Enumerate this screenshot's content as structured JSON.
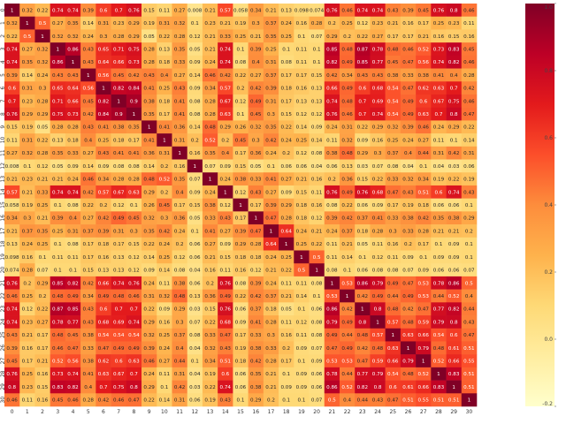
{
  "chart_data": {
    "type": "heatmap",
    "title": "",
    "xlabel": "",
    "ylabel": "",
    "x_tick_labels": [
      "0",
      "1",
      "2",
      "3",
      "4",
      "5",
      "6",
      "7",
      "8",
      "9",
      "10",
      "11",
      "12",
      "13",
      "14",
      "15",
      "16",
      "17",
      "18",
      "19",
      "20",
      "21",
      "22",
      "23",
      "24",
      "25",
      "26",
      "27",
      "28",
      "29",
      "30"
    ],
    "y_tick_labels": [
      "0",
      "1",
      "2",
      "3",
      "4",
      "5",
      "6",
      "7",
      "8",
      "9",
      "10",
      "11",
      "12",
      "13",
      "14",
      "15",
      "16",
      "17",
      "18",
      "19",
      "20",
      "21",
      "22",
      "23",
      "24",
      "25",
      "26",
      "27",
      "28",
      "29",
      "30"
    ],
    "value_range": [
      -0.2,
      1.0
    ],
    "colormap": "YlOrRd",
    "annotated": true,
    "colorbar": {
      "ticks": [
        1.0,
        0.8,
        0.6,
        0.4,
        0.2,
        0.0,
        -0.2
      ],
      "tick_labels": [
        "1.0",
        "0.8",
        "0.6",
        "0.4",
        "0.2",
        "0.0",
        "-0.2"
      ]
    },
    "values": [
      [
        1,
        0.32,
        0.22,
        0.74,
        0.74,
        0.39,
        0.6,
        0.7,
        0.76,
        0.15,
        0.11,
        0.27,
        0.008,
        0.21,
        0.57,
        0.058,
        0.34,
        0.21,
        0.13,
        0.098,
        0.074,
        0.76,
        0.46,
        0.74,
        0.74,
        0.43,
        0.39,
        0.45,
        0.76,
        0.8,
        0.46
      ],
      [
        0.32,
        1,
        0.5,
        0.27,
        0.35,
        0.14,
        0.31,
        0.23,
        0.29,
        0.19,
        0.31,
        0.32,
        0.1,
        0.23,
        0.21,
        0.19,
        0.3,
        0.37,
        0.24,
        0.16,
        0.28,
        0.2,
        0.25,
        0.12,
        0.23,
        0.21,
        0.16,
        0.17,
        0.25,
        0.23,
        0.11
      ],
      [
        0.22,
        0.5,
        1,
        0.32,
        0.32,
        0.24,
        0.3,
        0.28,
        0.29,
        0.05,
        0.22,
        0.28,
        0.12,
        0.21,
        0.33,
        0.25,
        0.21,
        0.35,
        0.25,
        0.1,
        0.07,
        0.29,
        0.2,
        0.22,
        0.27,
        0.17,
        0.17,
        0.21,
        0.16,
        0.15,
        0.16
      ],
      [
        0.74,
        0.27,
        0.32,
        1,
        0.86,
        0.43,
        0.65,
        0.71,
        0.75,
        0.28,
        0.13,
        0.35,
        0.05,
        0.21,
        0.74,
        0.1,
        0.39,
        0.25,
        0.1,
        0.11,
        0.1,
        0.85,
        0.48,
        0.87,
        0.78,
        0.48,
        0.46,
        0.52,
        0.73,
        0.83,
        0.45
      ],
      [
        0.74,
        0.35,
        0.32,
        0.86,
        1,
        0.43,
        0.64,
        0.66,
        0.73,
        0.28,
        0.18,
        0.33,
        0.09,
        0.24,
        0.74,
        0.08,
        0.4,
        0.31,
        0.08,
        0.11,
        0.1,
        0.82,
        0.49,
        0.85,
        0.77,
        0.45,
        0.47,
        0.56,
        0.74,
        0.82,
        0.46
      ],
      [
        0.39,
        0.14,
        0.24,
        0.43,
        0.43,
        1,
        0.56,
        0.45,
        0.42,
        0.43,
        0.4,
        0.27,
        0.14,
        0.46,
        0.42,
        0.22,
        0.27,
        0.37,
        0.17,
        0.17,
        0.15,
        0.42,
        0.34,
        0.43,
        0.43,
        0.38,
        0.33,
        0.38,
        0.41,
        0.4,
        0.28
      ],
      [
        0.6,
        0.31,
        0.3,
        0.65,
        0.64,
        0.56,
        1,
        0.82,
        0.84,
        0.41,
        0.25,
        0.43,
        0.09,
        0.34,
        0.57,
        0.2,
        0.42,
        0.39,
        0.18,
        0.16,
        0.13,
        0.66,
        0.49,
        0.6,
        0.68,
        0.54,
        0.47,
        0.62,
        0.63,
        0.7,
        0.42
      ],
      [
        0.7,
        0.23,
        0.28,
        0.71,
        0.66,
        0.45,
        0.82,
        1,
        0.9,
        0.38,
        0.18,
        0.41,
        0.08,
        0.28,
        0.67,
        0.12,
        0.49,
        0.31,
        0.17,
        0.13,
        0.13,
        0.74,
        0.48,
        0.7,
        0.69,
        0.54,
        0.49,
        0.6,
        0.67,
        0.75,
        0.46
      ],
      [
        0.76,
        0.29,
        0.29,
        0.75,
        0.73,
        0.42,
        0.84,
        0.9,
        1,
        0.35,
        0.17,
        0.41,
        0.08,
        0.28,
        0.63,
        0.1,
        0.45,
        0.3,
        0.15,
        0.12,
        0.12,
        0.76,
        0.46,
        0.7,
        0.74,
        0.54,
        0.49,
        0.63,
        0.7,
        0.8,
        0.47
      ],
      [
        0.15,
        0.19,
        0.05,
        0.28,
        0.28,
        0.43,
        0.41,
        0.38,
        0.35,
        1,
        0.41,
        0.36,
        0.14,
        0.48,
        0.29,
        0.26,
        0.32,
        0.35,
        0.22,
        0.14,
        0.09,
        0.24,
        0.31,
        0.22,
        0.29,
        0.32,
        0.39,
        0.46,
        0.24,
        0.29,
        0.22
      ],
      [
        0.11,
        0.31,
        0.22,
        0.13,
        0.18,
        0.4,
        0.25,
        0.18,
        0.17,
        0.41,
        1,
        0.31,
        0.2,
        0.52,
        0.2,
        0.45,
        0.3,
        0.42,
        0.24,
        0.25,
        0.14,
        0.11,
        0.32,
        0.09,
        0.16,
        0.25,
        0.24,
        0.27,
        0.11,
        0.1,
        0.14
      ],
      [
        0.27,
        0.32,
        0.28,
        0.35,
        0.33,
        0.27,
        0.43,
        0.41,
        0.41,
        0.36,
        0.31,
        1,
        0.16,
        0.35,
        0.4,
        0.17,
        0.36,
        0.24,
        0.2,
        0.12,
        0.08,
        0.38,
        0.48,
        0.29,
        0.3,
        0.37,
        0.4,
        0.44,
        0.31,
        0.42,
        0.31
      ],
      [
        0.008,
        0.1,
        0.12,
        0.05,
        0.09,
        0.14,
        0.09,
        0.08,
        0.08,
        0.14,
        0.2,
        0.16,
        1,
        0.07,
        0.09,
        0.15,
        0.05,
        0.1,
        0.06,
        0.06,
        0.04,
        0.06,
        0.13,
        0.03,
        0.07,
        0.08,
        0.04,
        0.1,
        0.04,
        0.03,
        0.06
      ],
      [
        0.21,
        0.23,
        0.21,
        0.21,
        0.24,
        0.46,
        0.34,
        0.28,
        0.28,
        0.48,
        0.52,
        0.35,
        0.07,
        1,
        0.24,
        0.38,
        0.33,
        0.41,
        0.27,
        0.21,
        0.16,
        0.2,
        0.36,
        0.15,
        0.22,
        0.33,
        0.32,
        0.34,
        0.19,
        0.22,
        0.19
      ],
      [
        0.57,
        0.21,
        0.33,
        0.74,
        0.74,
        0.42,
        0.57,
        0.67,
        0.63,
        0.29,
        0.2,
        0.4,
        0.09,
        0.24,
        1,
        0.12,
        0.43,
        0.27,
        0.09,
        0.15,
        0.11,
        0.76,
        0.49,
        0.76,
        0.68,
        0.47,
        0.43,
        0.51,
        0.6,
        0.74,
        0.43
      ],
      [
        0.058,
        0.19,
        0.25,
        0.1,
        0.08,
        0.22,
        0.2,
        0.12,
        0.1,
        0.26,
        0.45,
        0.17,
        0.15,
        0.38,
        0.12,
        1,
        0.17,
        0.39,
        0.29,
        0.18,
        0.16,
        0.08,
        0.22,
        0.06,
        0.09,
        0.17,
        0.19,
        0.18,
        0.06,
        0.06,
        0.1
      ],
      [
        0.34,
        0.3,
        0.21,
        0.39,
        0.4,
        0.27,
        0.42,
        0.49,
        0.45,
        0.32,
        0.3,
        0.36,
        0.05,
        0.33,
        0.43,
        0.17,
        1,
        0.47,
        0.28,
        0.18,
        0.12,
        0.39,
        0.42,
        0.37,
        0.41,
        0.33,
        0.38,
        0.42,
        0.35,
        0.38,
        0.29
      ],
      [
        0.21,
        0.37,
        0.35,
        0.25,
        0.31,
        0.37,
        0.39,
        0.31,
        0.3,
        0.35,
        0.42,
        0.24,
        0.1,
        0.41,
        0.27,
        0.39,
        0.47,
        1,
        0.64,
        0.24,
        0.21,
        0.24,
        0.37,
        0.18,
        0.28,
        0.3,
        0.33,
        0.28,
        0.21,
        0.21,
        0.2
      ],
      [
        0.13,
        0.24,
        0.25,
        0.1,
        0.08,
        0.17,
        0.18,
        0.17,
        0.15,
        0.22,
        0.24,
        0.2,
        0.06,
        0.27,
        0.09,
        0.29,
        0.28,
        0.64,
        1,
        0.25,
        0.22,
        0.11,
        0.21,
        0.05,
        0.11,
        0.16,
        0.2,
        0.17,
        0.1,
        0.09,
        0.1
      ],
      [
        0.098,
        0.16,
        0.1,
        0.11,
        0.11,
        0.17,
        0.16,
        0.13,
        0.12,
        0.14,
        0.25,
        0.12,
        0.06,
        0.21,
        0.15,
        0.18,
        0.18,
        0.24,
        0.25,
        1,
        0.5,
        0.11,
        0.14,
        0.1,
        0.12,
        0.11,
        0.09,
        0.1,
        0.09,
        0.09,
        0.1
      ],
      [
        0.074,
        0.28,
        0.07,
        0.1,
        0.1,
        0.15,
        0.13,
        0.13,
        0.12,
        0.09,
        0.14,
        0.08,
        0.04,
        0.16,
        0.11,
        0.16,
        0.12,
        0.21,
        0.22,
        0.5,
        1,
        0.08,
        0.1,
        0.06,
        0.08,
        0.08,
        0.07,
        0.09,
        0.06,
        0.06,
        0.07
      ],
      [
        0.76,
        0.2,
        0.29,
        0.85,
        0.82,
        0.42,
        0.66,
        0.74,
        0.76,
        0.24,
        0.11,
        0.38,
        0.06,
        0.2,
        0.76,
        0.08,
        0.39,
        0.24,
        0.11,
        0.11,
        0.08,
        1,
        0.53,
        0.86,
        0.79,
        0.49,
        0.47,
        0.53,
        0.78,
        0.86,
        0.5
      ],
      [
        0.46,
        0.25,
        0.2,
        0.48,
        0.49,
        0.34,
        0.49,
        0.48,
        0.46,
        0.31,
        0.32,
        0.48,
        0.13,
        0.36,
        0.49,
        0.22,
        0.42,
        0.37,
        0.21,
        0.14,
        0.1,
        0.53,
        1,
        0.42,
        0.49,
        0.44,
        0.49,
        0.53,
        0.44,
        0.52,
        0.4
      ],
      [
        0.74,
        0.12,
        0.22,
        0.87,
        0.85,
        0.43,
        0.6,
        0.7,
        0.7,
        0.22,
        0.09,
        0.29,
        0.03,
        0.15,
        0.76,
        0.06,
        0.37,
        0.18,
        0.05,
        0.1,
        0.06,
        0.86,
        0.42,
        1,
        0.8,
        0.48,
        0.42,
        0.47,
        0.77,
        0.82,
        0.44
      ],
      [
        0.74,
        0.23,
        0.27,
        0.78,
        0.77,
        0.43,
        0.68,
        0.69,
        0.74,
        0.29,
        0.16,
        0.3,
        0.07,
        0.22,
        0.68,
        0.09,
        0.41,
        0.28,
        0.11,
        0.12,
        0.08,
        0.79,
        0.49,
        0.8,
        1,
        0.57,
        0.48,
        0.59,
        0.79,
        0.8,
        0.43
      ],
      [
        0.43,
        0.21,
        0.17,
        0.48,
        0.45,
        0.38,
        0.54,
        0.54,
        0.54,
        0.32,
        0.25,
        0.37,
        0.08,
        0.33,
        0.47,
        0.17,
        0.33,
        0.3,
        0.16,
        0.11,
        0.08,
        0.49,
        0.44,
        0.48,
        0.57,
        1,
        0.63,
        0.66,
        0.54,
        0.6,
        0.47
      ],
      [
        0.39,
        0.16,
        0.17,
        0.46,
        0.47,
        0.33,
        0.47,
        0.49,
        0.49,
        0.39,
        0.24,
        0.4,
        0.04,
        0.32,
        0.43,
        0.19,
        0.38,
        0.33,
        0.2,
        0.09,
        0.07,
        0.47,
        0.49,
        0.42,
        0.48,
        0.63,
        1,
        0.79,
        0.48,
        0.61,
        0.51
      ],
      [
        0.45,
        0.17,
        0.21,
        0.52,
        0.56,
        0.38,
        0.62,
        0.6,
        0.63,
        0.46,
        0.27,
        0.44,
        0.1,
        0.34,
        0.51,
        0.18,
        0.42,
        0.28,
        0.17,
        0.1,
        0.09,
        0.53,
        0.53,
        0.47,
        0.59,
        0.66,
        0.79,
        1,
        0.52,
        0.66,
        0.55
      ],
      [
        0.76,
        0.25,
        0.16,
        0.73,
        0.74,
        0.41,
        0.63,
        0.67,
        0.7,
        0.24,
        0.11,
        0.31,
        0.04,
        0.19,
        0.6,
        0.06,
        0.35,
        0.21,
        0.1,
        0.09,
        0.06,
        0.78,
        0.44,
        0.77,
        0.79,
        0.54,
        0.48,
        0.52,
        1,
        0.83,
        0.51
      ],
      [
        0.8,
        0.23,
        0.15,
        0.83,
        0.82,
        0.4,
        0.7,
        0.75,
        0.8,
        0.29,
        0.1,
        0.42,
        0.03,
        0.22,
        0.74,
        0.06,
        0.38,
        0.21,
        0.09,
        0.09,
        0.06,
        0.86,
        0.52,
        0.82,
        0.8,
        0.6,
        0.61,
        0.66,
        0.83,
        1,
        0.51
      ],
      [
        0.46,
        0.11,
        0.16,
        0.45,
        0.46,
        0.28,
        0.42,
        0.46,
        0.47,
        0.22,
        0.14,
        0.31,
        0.06,
        0.19,
        0.43,
        0.1,
        0.29,
        0.2,
        0.1,
        0.1,
        0.07,
        0.5,
        0.4,
        0.44,
        0.43,
        0.47,
        0.51,
        0.55,
        0.51,
        0.51,
        1
      ]
    ]
  }
}
